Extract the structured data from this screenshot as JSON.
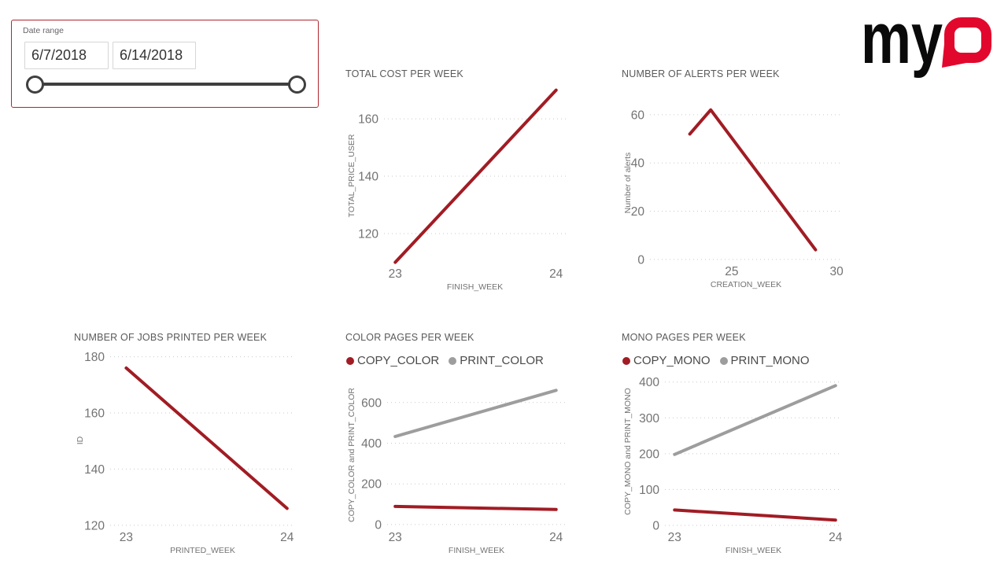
{
  "slicer": {
    "label": "Date range",
    "start_date": "6/7/2018",
    "end_date": "6/14/2018"
  },
  "logo": {
    "text_my": "my",
    "text_q": "Q"
  },
  "colors": {
    "brand_red": "#e2082d",
    "series_red": "#a11c24",
    "series_gray": "#9d9d9d",
    "slicer_border": "#b0252e",
    "text_gray": "#737373"
  },
  "chart_data": [
    {
      "type": "line",
      "title": "TOTAL COST PER WEEK",
      "xlabel": "FINISH_WEEK",
      "ylabel": "TOTAL_PRICE_USER",
      "xticks": [
        23,
        24
      ],
      "yticks": [
        120,
        140,
        160
      ],
      "xlim": [
        22.93,
        24.06
      ],
      "ylim": [
        109.6,
        170.7
      ],
      "grid": true,
      "legend": null,
      "series": [
        {
          "name": "TOTAL_PRICE_USER",
          "color": "#a11c24",
          "values": [
            [
              23,
              110
            ],
            [
              24,
              170
            ]
          ]
        }
      ]
    },
    {
      "type": "line",
      "title": "NUMBER OF ALERTS PER WEEK",
      "xlabel": "CREATION_WEEK",
      "ylabel": "Number of alerts",
      "xticks": [
        25,
        30
      ],
      "yticks": [
        0,
        20,
        40,
        60
      ],
      "xlim": [
        21.1,
        30.26
      ],
      "ylim": [
        -0.7,
        64.2
      ],
      "grid": true,
      "legend": null,
      "series": [
        {
          "name": "Number of alerts",
          "color": "#a11c24",
          "values": [
            [
              23,
              52
            ],
            [
              24,
              62
            ],
            [
              29,
              4
            ]
          ]
        }
      ]
    },
    {
      "type": "line",
      "title": "NUMBER OF JOBS PRINTED PER WEEK",
      "xlabel": "PRINTED_WEEK",
      "ylabel": "ID",
      "xticks": [
        23,
        24
      ],
      "yticks": [
        120,
        140,
        160,
        180
      ],
      "xlim": [
        22.9,
        24.05
      ],
      "ylim": [
        119.4,
        181
      ],
      "grid": true,
      "legend": null,
      "series": [
        {
          "name": "ID",
          "color": "#a11c24",
          "values": [
            [
              23,
              176
            ],
            [
              24,
              126
            ]
          ]
        }
      ]
    },
    {
      "type": "line",
      "title": "COLOR PAGES PER WEEK",
      "xlabel": "FINISH_WEEK",
      "ylabel": "COPY_COLOR and PRINT_COLOR",
      "xticks": [
        23,
        24
      ],
      "yticks": [
        0,
        200,
        400,
        600
      ],
      "xlim": [
        22.95,
        24.06
      ],
      "ylim": [
        -12,
        696
      ],
      "grid": true,
      "legend": "top",
      "series": [
        {
          "name": "COPY_COLOR",
          "color": "#a11c24",
          "values": [
            [
              23,
              89
            ],
            [
              24,
              74
            ]
          ]
        },
        {
          "name": "PRINT_COLOR",
          "color": "#9d9d9d",
          "values": [
            [
              23,
              433
            ],
            [
              24,
              660
            ]
          ]
        }
      ]
    },
    {
      "type": "line",
      "title": "MONO PAGES PER WEEK",
      "xlabel": "FINISH_WEEK",
      "ylabel": "COPY_MONO and PRINT_MONO",
      "xticks": [
        23,
        24
      ],
      "yticks": [
        0,
        100,
        200,
        300,
        400
      ],
      "xlim": [
        22.94,
        24.04
      ],
      "ylim": [
        -4.4,
        417
      ],
      "grid": true,
      "legend": "top",
      "series": [
        {
          "name": "COPY_MONO",
          "color": "#a11c24",
          "values": [
            [
              23,
              43
            ],
            [
              24,
              15
            ]
          ]
        },
        {
          "name": "PRINT_MONO",
          "color": "#9d9d9d",
          "values": [
            [
              23,
              198
            ],
            [
              24,
              390
            ]
          ]
        }
      ]
    }
  ]
}
